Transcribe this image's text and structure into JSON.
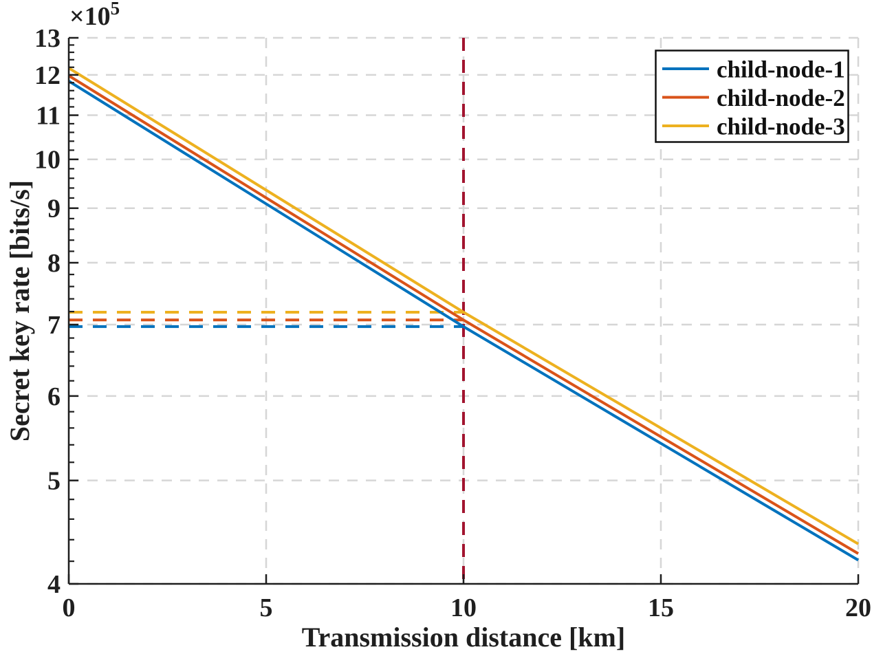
{
  "figure": {
    "background": "#ffffff",
    "axis_color": "#1f1f1f",
    "grid_color": "#d6d6d6"
  },
  "chart_data": {
    "type": "line",
    "title": "",
    "xlabel": "Transmission distance [km]",
    "ylabel": "Secret key rate [bits/s]",
    "y_multiplier_base": "×10",
    "y_multiplier_exponent": "5",
    "x_scale": "linear",
    "y_scale": "log",
    "xlim": [
      0,
      20
    ],
    "ylim": [
      400000,
      1300000
    ],
    "x_ticks": [
      0,
      5,
      10,
      15,
      20
    ],
    "y_ticks": [
      4,
      5,
      6,
      7,
      8,
      9,
      10,
      11,
      12,
      13
    ],
    "y_tick_scale": 100000,
    "y_minor_tick_step": 0.2,
    "grid": true,
    "grid_style": "dashed",
    "legend_position": "top-right",
    "series": [
      {
        "name": "child-node-1",
        "color": "#0072BD",
        "x": [
          0,
          10,
          20
        ],
        "y": [
          1184000,
          697000,
          421000
        ]
      },
      {
        "name": "child-node-2",
        "color": "#D95319",
        "x": [
          0,
          10,
          20
        ],
        "y": [
          1198000,
          707000,
          427000
        ]
      },
      {
        "name": "child-node-3",
        "color": "#EDB120",
        "x": [
          0,
          10,
          20
        ],
        "y": [
          1218000,
          719000,
          436000
        ]
      }
    ],
    "annotations": {
      "vertical_line": {
        "x": 10,
        "color": "#A2142F",
        "style": "dashed"
      },
      "horizontal_lines": [
        {
          "y": 697000,
          "x_from": 0,
          "x_to": 10,
          "color": "#0072BD",
          "style": "dashed"
        },
        {
          "y": 707000,
          "x_from": 0,
          "x_to": 10,
          "color": "#D95319",
          "style": "dashed"
        },
        {
          "y": 719000,
          "x_from": 0,
          "x_to": 10,
          "color": "#EDB120",
          "style": "dashed"
        }
      ]
    }
  }
}
